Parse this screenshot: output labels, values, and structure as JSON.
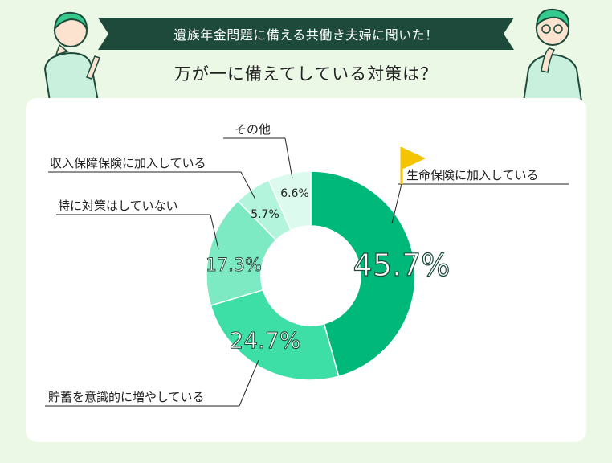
{
  "header": {
    "banner_text": "遺族年金問題に備える共働き夫婦に聞いた！",
    "question": "万が一に備えてしている対策は？"
  },
  "colors": {
    "background": "#ecf8e6",
    "banner": "#1d4a3a",
    "accent_flag": "#f5c400"
  },
  "chart_data": {
    "type": "pie",
    "title": "万が一に備えてしている対策は？",
    "unit": "%",
    "donut": true,
    "slices": [
      {
        "label": "生命保険に加入している",
        "value": 45.7,
        "value_label": "45.7%",
        "color": "#00b87a"
      },
      {
        "label": "貯蓄を意識的に増やしている",
        "value": 24.7,
        "value_label": "24.7%",
        "color": "#3ddfa6"
      },
      {
        "label": "特に対策はしていない",
        "value": 17.3,
        "value_label": "17.3%",
        "color": "#7deac3"
      },
      {
        "label": "収入保障保険に加入している",
        "value": 5.7,
        "value_label": "5.7%",
        "color": "#b3f4dd"
      },
      {
        "label": "その他",
        "value": 6.6,
        "value_label": "6.6%",
        "color": "#ddfaef"
      }
    ]
  }
}
